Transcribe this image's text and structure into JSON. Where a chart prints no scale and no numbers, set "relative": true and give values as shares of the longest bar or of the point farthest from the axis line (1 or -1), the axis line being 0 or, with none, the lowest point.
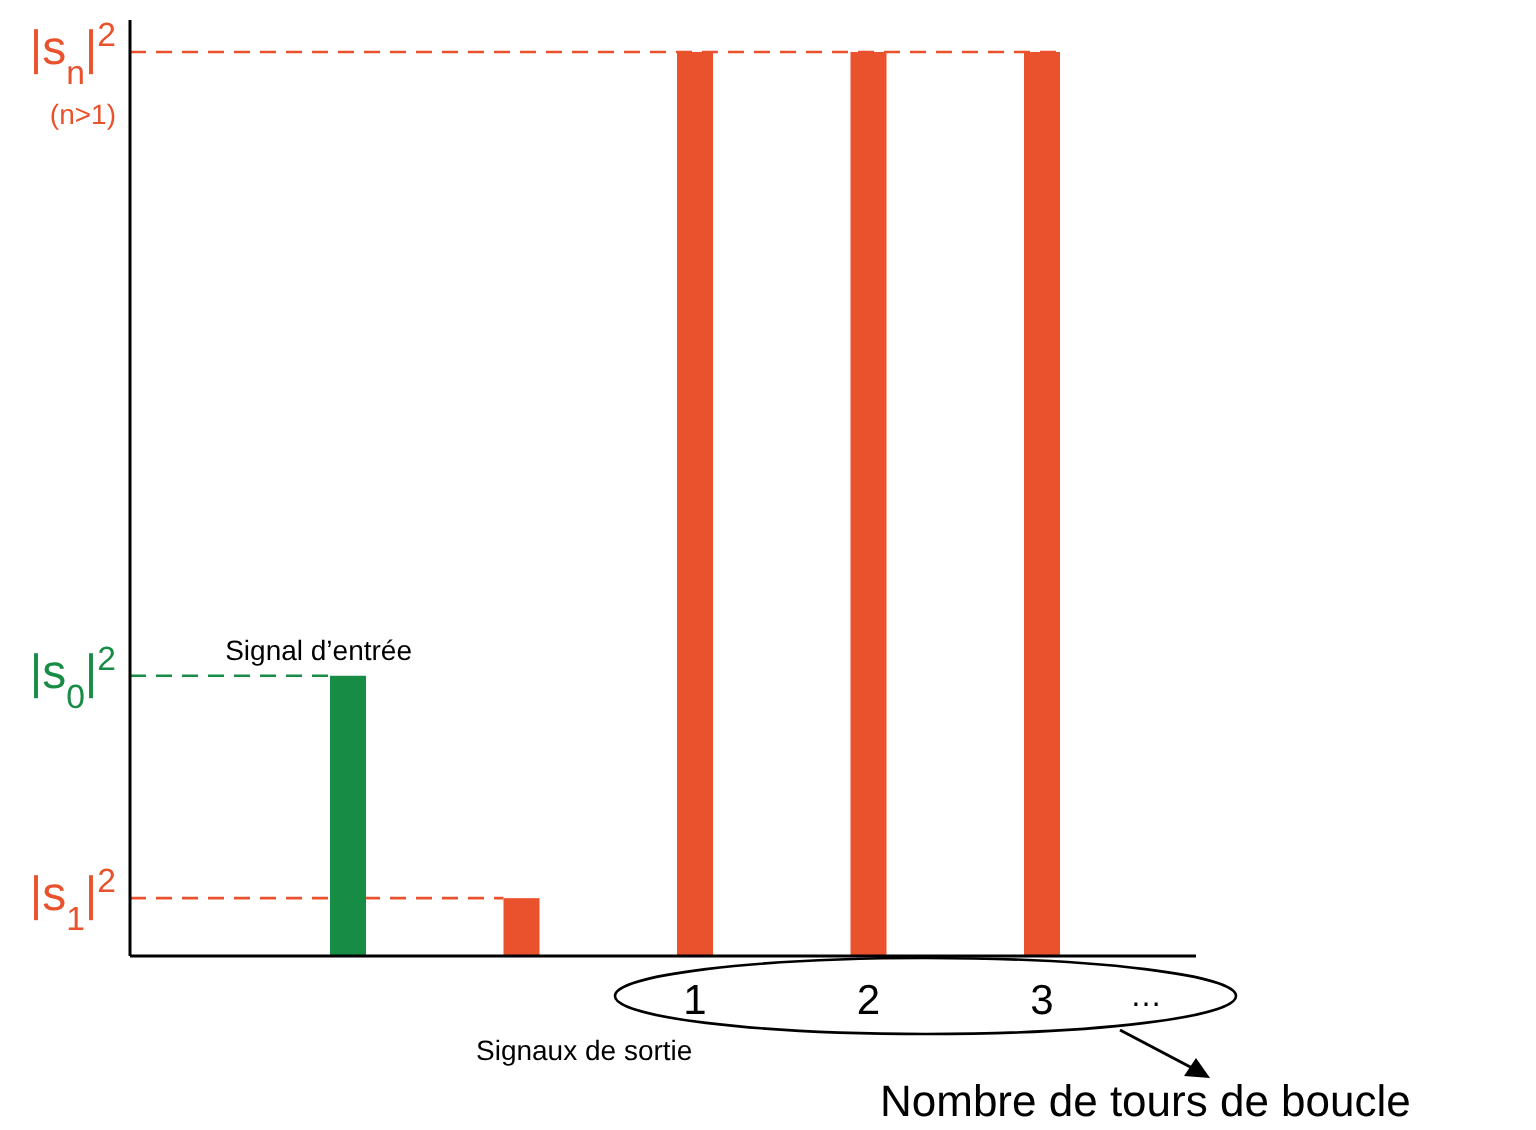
{
  "chart_data": {
    "type": "bar",
    "relative": true,
    "categories": [
      null,
      null,
      "1",
      "2",
      "3"
    ],
    "values": [
      0.31,
      0.064,
      1,
      1,
      1
    ],
    "colors": [
      "#178c44",
      "#e9522c",
      "#e9522c",
      "#e9522c",
      "#e9522c"
    ],
    "xlabel": "Nombre de tours de boucle",
    "ref_lines": [
      {
        "axis": "y",
        "value": 1,
        "label": "|s$_{n}$|$^{2}$ (n>1)",
        "color": "#e9522c",
        "line_style": "dashed"
      },
      {
        "axis": "y",
        "value": 0.31,
        "label": "|s$_{0}$|$^{2}$",
        "color": "#178c44",
        "line_style": "dashed"
      },
      {
        "axis": "y",
        "value": 0.064,
        "label": "|s$_{1}$|$^{2}$",
        "color": "#e9522c",
        "line_style": "dashed"
      }
    ],
    "annotations": [
      "Signal d’entrée",
      "Signaux de sortie",
      "…"
    ]
  }
}
